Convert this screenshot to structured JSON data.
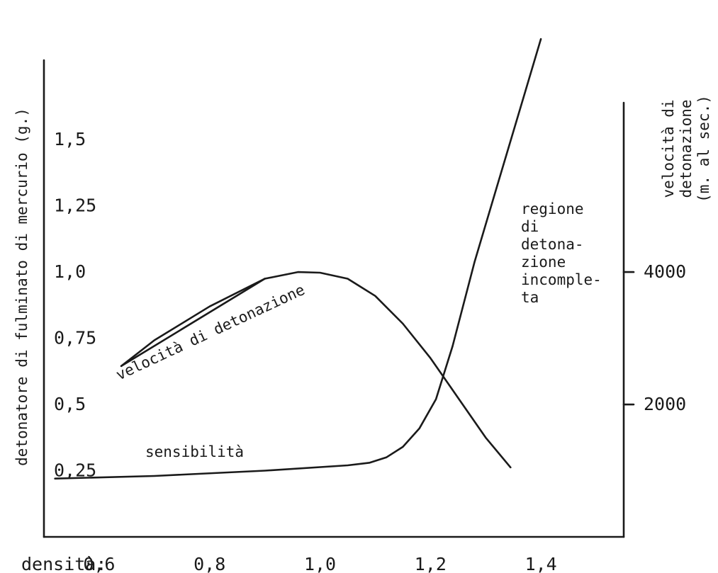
{
  "chart_data": {
    "type": "line",
    "xlabel": "densità:",
    "ylabel": "detonatore di fulminato di mercurio (g.)",
    "y2label": [
      "velocità di",
      "detonazione",
      "(m. al sec.)"
    ],
    "x_ticks": [
      "0,6",
      "0,8",
      "1,0",
      "1,2",
      "1,4"
    ],
    "y_ticks": [
      "0,25",
      "0,5",
      "0,75",
      "1,0",
      "1,25",
      "1,5"
    ],
    "y2_ticks": [
      "2000",
      "4000"
    ],
    "xlim": [
      0.5,
      1.55
    ],
    "ylim": [
      0,
      1.8
    ],
    "y2lim": [
      0,
      7200
    ],
    "grid": false,
    "series": [
      {
        "name": "sensibilità",
        "axis": "left",
        "x": [
          0.52,
          0.7,
          0.9,
          1.05,
          1.09,
          1.12,
          1.15,
          1.18,
          1.21,
          1.24,
          1.28,
          1.32,
          1.36,
          1.4
        ],
        "y": [
          0.22,
          0.23,
          0.25,
          0.27,
          0.28,
          0.3,
          0.34,
          0.41,
          0.52,
          0.72,
          1.04,
          1.32,
          1.6,
          1.88
        ]
      },
      {
        "name": "velocità di detonazione",
        "axis": "right",
        "x": [
          0.64,
          0.7,
          0.8,
          0.9,
          0.96,
          1.0,
          1.05,
          1.1,
          1.15,
          1.2,
          1.25,
          1.3,
          1.345
        ],
        "y": [
          2580,
          2970,
          3480,
          3900,
          4000,
          3990,
          3900,
          3640,
          3220,
          2700,
          2100,
          1500,
          1050
        ]
      }
    ],
    "annotations": [
      "regione",
      "di",
      "detona-",
      "zione",
      "incomple-",
      "ta"
    ]
  }
}
